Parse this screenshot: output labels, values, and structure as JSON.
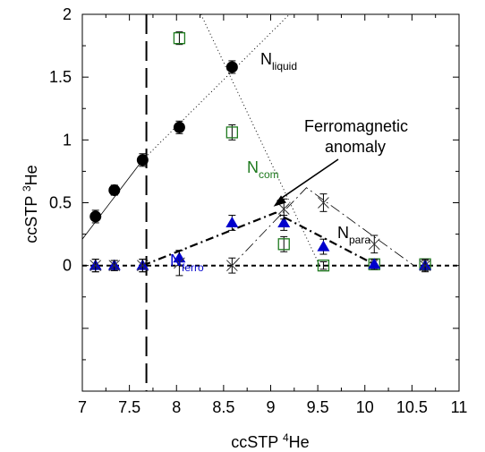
{
  "chart_data": {
    "type": "scatter",
    "xlabel": {
      "base": "ccSTP ",
      "sup": "4",
      "tail": "He"
    },
    "ylabel": {
      "base": "ccSTP ",
      "sup": "3",
      "tail": "He"
    },
    "xlim": [
      7,
      11
    ],
    "ylim": [
      -1,
      2
    ],
    "x_ticks": [
      7,
      7.5,
      8,
      8.5,
      9,
      9.5,
      10,
      10.5,
      11
    ],
    "x_tick_labels": [
      "7",
      "7.5",
      "8",
      "8.5",
      "9",
      "9.5",
      "10",
      "10.5",
      "11"
    ],
    "y_ticks": [
      0,
      0.5,
      1,
      1.5,
      2
    ],
    "y_tick_labels": [
      "0",
      "0.5",
      "1",
      "1.5",
      "2"
    ],
    "grid": false,
    "series": [
      {
        "label_main": "N",
        "label_sub": "liquid",
        "marker": "circle",
        "color": "#000000",
        "points": [
          {
            "x": 7.14,
            "y": 0.39,
            "err": 0.05
          },
          {
            "x": 7.34,
            "y": 0.6,
            "err": 0.04
          },
          {
            "x": 7.64,
            "y": 0.84,
            "err": 0.05
          },
          {
            "x": 8.03,
            "y": 1.1,
            "err": 0.05
          },
          {
            "x": 8.59,
            "y": 1.58,
            "err": 0.05
          }
        ]
      },
      {
        "label_main": "N",
        "label_sub": "com",
        "marker": "square-open",
        "color": "#1e7a1e",
        "points": [
          {
            "x": 8.03,
            "y": 1.81,
            "err": 0.05
          },
          {
            "x": 8.59,
            "y": 1.06,
            "err": 0.06
          },
          {
            "x": 9.14,
            "y": 0.17,
            "err": 0.06
          },
          {
            "x": 9.56,
            "y": 0.0,
            "err": 0.03
          },
          {
            "x": 10.1,
            "y": 0.01,
            "err": 0.03
          },
          {
            "x": 10.64,
            "y": 0.01,
            "err": 0.03
          }
        ]
      },
      {
        "label_main": "N",
        "label_sub": "ferro",
        "marker": "triangle",
        "color": "#0000cc",
        "points": [
          {
            "x": 7.14,
            "y": 0.0,
            "err": 0.05
          },
          {
            "x": 7.34,
            "y": 0.0,
            "err": 0.04
          },
          {
            "x": 7.64,
            "y": 0.0,
            "err": 0.05
          },
          {
            "x": 8.03,
            "y": 0.06,
            "err": 0.06
          },
          {
            "x": 8.59,
            "y": 0.34,
            "err": 0.06
          },
          {
            "x": 9.14,
            "y": 0.34,
            "err": 0.06
          },
          {
            "x": 9.56,
            "y": 0.15,
            "err": 0.06
          },
          {
            "x": 10.1,
            "y": 0.01,
            "err": 0.04
          },
          {
            "x": 10.64,
            "y": 0.0,
            "err": 0.04
          }
        ]
      },
      {
        "label_main": "N",
        "label_sub": "para",
        "marker": "x",
        "color": "#333333",
        "points": [
          {
            "x": 7.14,
            "y": 0.0,
            "err": 0.05
          },
          {
            "x": 7.34,
            "y": 0.0,
            "err": 0.04
          },
          {
            "x": 7.64,
            "y": 0.0,
            "err": 0.05
          },
          {
            "x": 8.03,
            "y": 0.02,
            "err": 0.1
          },
          {
            "x": 8.59,
            "y": 0.0,
            "err": 0.06
          },
          {
            "x": 9.14,
            "y": 0.45,
            "err": 0.08
          },
          {
            "x": 9.56,
            "y": 0.5,
            "err": 0.07
          },
          {
            "x": 10.1,
            "y": 0.17,
            "err": 0.07
          },
          {
            "x": 10.64,
            "y": 0.0,
            "err": 0.05
          }
        ]
      }
    ],
    "lines": [
      {
        "style": "solid-thin",
        "points": [
          [
            7.0,
            0.21
          ],
          [
            7.64,
            0.84
          ]
        ]
      },
      {
        "style": "dotted",
        "points": [
          [
            7.64,
            0.84
          ],
          [
            9.2,
            2.0
          ]
        ]
      },
      {
        "style": "dotted",
        "points": [
          [
            8.26,
            2.0
          ],
          [
            9.52,
            0.0
          ]
        ]
      },
      {
        "style": "dashed-short",
        "points": [
          [
            7.0,
            0.0
          ],
          [
            11.0,
            0.0
          ]
        ]
      },
      {
        "style": "dash-dot-bold",
        "points": [
          [
            7.64,
            0.0
          ],
          [
            9.05,
            0.42
          ],
          [
            10.1,
            0.01
          ]
        ]
      },
      {
        "style": "dash-dot-thin",
        "points": [
          [
            8.59,
            0.0
          ],
          [
            9.38,
            0.62
          ],
          [
            10.52,
            0.0
          ]
        ]
      },
      {
        "style": "long-dash-vertical",
        "points": [
          [
            7.68,
            2.0
          ],
          [
            7.68,
            -1.0
          ]
        ]
      }
    ],
    "annotations": {
      "ferromagnetic_line1": "Ferromagnetic",
      "ferromagnetic_line2": "anomaly",
      "arrow_tip": [
        9.03,
        0.47
      ]
    }
  }
}
